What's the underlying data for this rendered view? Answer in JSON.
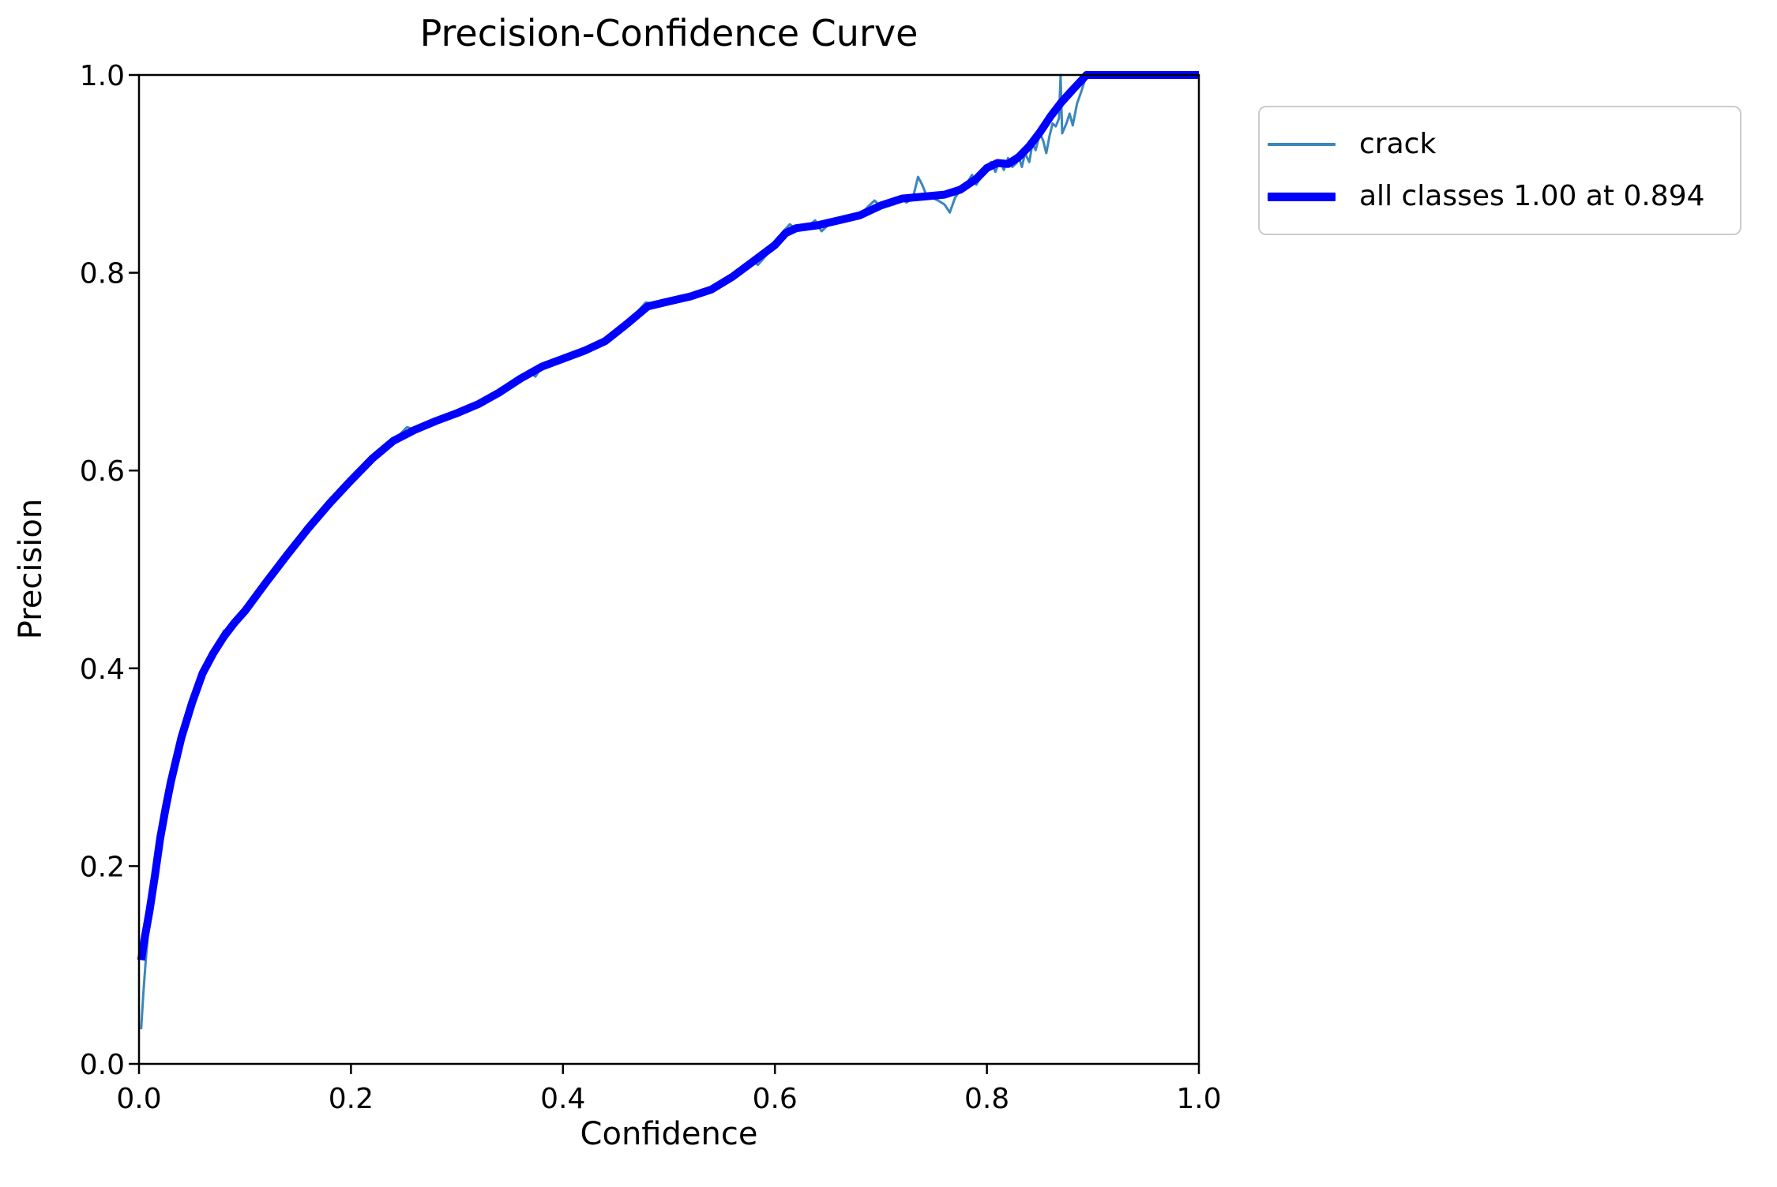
{
  "figure": {
    "title": "Precision-Confidence Curve",
    "background_color": "#ffffff",
    "frame_color": "#000000",
    "legend_border_color": "#cbcbcb"
  },
  "chart_data": {
    "type": "line",
    "title": "Precision-Confidence Curve",
    "xlabel": "Confidence",
    "ylabel": "Precision",
    "xlim": [
      0.0,
      1.0
    ],
    "ylim": [
      0.0,
      1.0
    ],
    "grid": false,
    "legend_position": "outside upper right",
    "xticks": {
      "values": [
        0.0,
        0.2,
        0.4,
        0.6,
        0.8,
        1.0
      ],
      "labels": [
        "0.0",
        "0.2",
        "0.4",
        "0.6",
        "0.8",
        "1.0"
      ]
    },
    "yticks": {
      "values": [
        0.0,
        0.2,
        0.4,
        0.6,
        0.8,
        1.0
      ],
      "labels": [
        "0.0",
        "0.2",
        "0.4",
        "0.6",
        "0.8",
        "1.0"
      ]
    },
    "annotation": "all classes reach precision 1.00 at confidence 0.894",
    "series": [
      {
        "name": "crack",
        "color": "#3a86bd",
        "linewidth": "thin",
        "points": [
          [
            0.002,
            0.035
          ],
          [
            0.004,
            0.07
          ],
          [
            0.006,
            0.1
          ],
          [
            0.008,
            0.125
          ],
          [
            0.01,
            0.155
          ],
          [
            0.015,
            0.19
          ],
          [
            0.02,
            0.228
          ],
          [
            0.025,
            0.258
          ],
          [
            0.03,
            0.285
          ],
          [
            0.04,
            0.33
          ],
          [
            0.05,
            0.365
          ],
          [
            0.06,
            0.395
          ],
          [
            0.07,
            0.415
          ],
          [
            0.076,
            0.428
          ],
          [
            0.08,
            0.438
          ],
          [
            0.084,
            0.433
          ],
          [
            0.09,
            0.446
          ],
          [
            0.1,
            0.458
          ],
          [
            0.12,
            0.487
          ],
          [
            0.14,
            0.515
          ],
          [
            0.16,
            0.542
          ],
          [
            0.18,
            0.567
          ],
          [
            0.2,
            0.59
          ],
          [
            0.22,
            0.612
          ],
          [
            0.24,
            0.63
          ],
          [
            0.253,
            0.644
          ],
          [
            0.26,
            0.641
          ],
          [
            0.28,
            0.65
          ],
          [
            0.3,
            0.658
          ],
          [
            0.32,
            0.667
          ],
          [
            0.34,
            0.679
          ],
          [
            0.36,
            0.693
          ],
          [
            0.368,
            0.7
          ],
          [
            0.374,
            0.695
          ],
          [
            0.38,
            0.705
          ],
          [
            0.4,
            0.713
          ],
          [
            0.42,
            0.721
          ],
          [
            0.44,
            0.731
          ],
          [
            0.46,
            0.748
          ],
          [
            0.478,
            0.77
          ],
          [
            0.49,
            0.768
          ],
          [
            0.5,
            0.771
          ],
          [
            0.52,
            0.776
          ],
          [
            0.54,
            0.783
          ],
          [
            0.56,
            0.796
          ],
          [
            0.578,
            0.812
          ],
          [
            0.584,
            0.808
          ],
          [
            0.6,
            0.828
          ],
          [
            0.608,
            0.842
          ],
          [
            0.614,
            0.849
          ],
          [
            0.62,
            0.844
          ],
          [
            0.63,
            0.846
          ],
          [
            0.638,
            0.853
          ],
          [
            0.644,
            0.842
          ],
          [
            0.65,
            0.848
          ],
          [
            0.66,
            0.852
          ],
          [
            0.67,
            0.856
          ],
          [
            0.68,
            0.858
          ],
          [
            0.688,
            0.867
          ],
          [
            0.694,
            0.873
          ],
          [
            0.7,
            0.867
          ],
          [
            0.706,
            0.873
          ],
          [
            0.712,
            0.869
          ],
          [
            0.718,
            0.877
          ],
          [
            0.724,
            0.871
          ],
          [
            0.73,
            0.875
          ],
          [
            0.735,
            0.897
          ],
          [
            0.739,
            0.889
          ],
          [
            0.743,
            0.878
          ],
          [
            0.748,
            0.876
          ],
          [
            0.754,
            0.873
          ],
          [
            0.76,
            0.869
          ],
          [
            0.765,
            0.861
          ],
          [
            0.77,
            0.876
          ],
          [
            0.776,
            0.885
          ],
          [
            0.782,
            0.892
          ],
          [
            0.786,
            0.899
          ],
          [
            0.79,
            0.889
          ],
          [
            0.796,
            0.901
          ],
          [
            0.8,
            0.908
          ],
          [
            0.804,
            0.912
          ],
          [
            0.808,
            0.902
          ],
          [
            0.812,
            0.913
          ],
          [
            0.816,
            0.904
          ],
          [
            0.82,
            0.916
          ],
          [
            0.824,
            0.907
          ],
          [
            0.828,
            0.911
          ],
          [
            0.83,
            0.917
          ],
          [
            0.833,
            0.907
          ],
          [
            0.836,
            0.921
          ],
          [
            0.84,
            0.912
          ],
          [
            0.843,
            0.931
          ],
          [
            0.846,
            0.924
          ],
          [
            0.85,
            0.941
          ],
          [
            0.853,
            0.934
          ],
          [
            0.856,
            0.921
          ],
          [
            0.859,
            0.938
          ],
          [
            0.862,
            0.951
          ],
          [
            0.865,
            0.948
          ],
          [
            0.868,
            0.956
          ],
          [
            0.8695,
            1.0
          ],
          [
            0.871,
            0.941
          ],
          [
            0.875,
            0.951
          ],
          [
            0.878,
            0.961
          ],
          [
            0.881,
            0.949
          ],
          [
            0.885,
            0.971
          ],
          [
            0.889,
            0.983
          ],
          [
            0.894,
            1.0
          ],
          [
            1.0,
            1.0
          ]
        ]
      },
      {
        "name": "all classes 1.00 at 0.894",
        "color": "#0000ff",
        "linewidth": "thick",
        "points": [
          [
            0.002,
            0.105
          ],
          [
            0.005,
            0.125
          ],
          [
            0.01,
            0.155
          ],
          [
            0.015,
            0.19
          ],
          [
            0.02,
            0.228
          ],
          [
            0.025,
            0.258
          ],
          [
            0.03,
            0.285
          ],
          [
            0.04,
            0.33
          ],
          [
            0.05,
            0.365
          ],
          [
            0.06,
            0.395
          ],
          [
            0.07,
            0.415
          ],
          [
            0.08,
            0.432
          ],
          [
            0.09,
            0.446
          ],
          [
            0.1,
            0.458
          ],
          [
            0.12,
            0.487
          ],
          [
            0.14,
            0.515
          ],
          [
            0.16,
            0.542
          ],
          [
            0.18,
            0.567
          ],
          [
            0.2,
            0.59
          ],
          [
            0.22,
            0.612
          ],
          [
            0.24,
            0.63
          ],
          [
            0.26,
            0.641
          ],
          [
            0.28,
            0.65
          ],
          [
            0.3,
            0.658
          ],
          [
            0.32,
            0.667
          ],
          [
            0.34,
            0.679
          ],
          [
            0.36,
            0.693
          ],
          [
            0.38,
            0.705
          ],
          [
            0.4,
            0.713
          ],
          [
            0.42,
            0.721
          ],
          [
            0.44,
            0.731
          ],
          [
            0.46,
            0.748
          ],
          [
            0.48,
            0.766
          ],
          [
            0.5,
            0.771
          ],
          [
            0.52,
            0.776
          ],
          [
            0.54,
            0.783
          ],
          [
            0.56,
            0.796
          ],
          [
            0.58,
            0.812
          ],
          [
            0.6,
            0.828
          ],
          [
            0.61,
            0.84
          ],
          [
            0.62,
            0.845
          ],
          [
            0.64,
            0.848
          ],
          [
            0.66,
            0.853
          ],
          [
            0.68,
            0.858
          ],
          [
            0.7,
            0.868
          ],
          [
            0.72,
            0.875
          ],
          [
            0.74,
            0.877
          ],
          [
            0.76,
            0.879
          ],
          [
            0.775,
            0.884
          ],
          [
            0.79,
            0.895
          ],
          [
            0.8,
            0.906
          ],
          [
            0.81,
            0.911
          ],
          [
            0.82,
            0.91
          ],
          [
            0.83,
            0.917
          ],
          [
            0.84,
            0.928
          ],
          [
            0.85,
            0.942
          ],
          [
            0.86,
            0.958
          ],
          [
            0.87,
            0.972
          ],
          [
            0.88,
            0.984
          ],
          [
            0.894,
            1.0
          ],
          [
            1.0,
            1.0
          ]
        ]
      }
    ]
  }
}
